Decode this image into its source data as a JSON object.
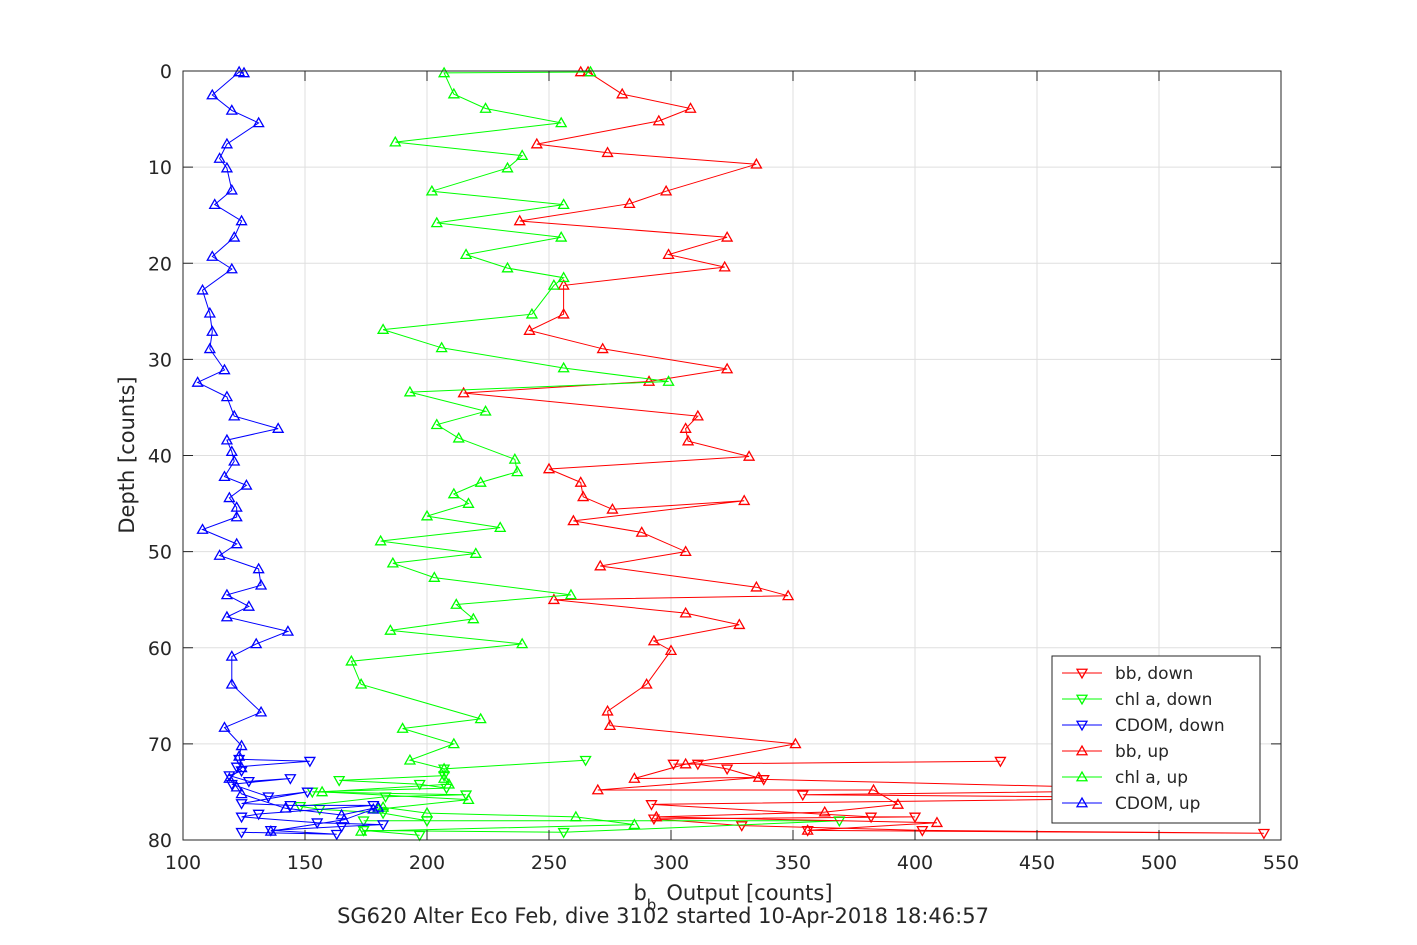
{
  "chart_data": {
    "type": "line",
    "xlabel_main": "b",
    "xlabel_sub": "b",
    "xlabel_rest": "Output [counts]",
    "ylabel": "Depth [counts]",
    "caption": "SG620 Alter Eco Feb, dive 3102 started 10-Apr-2018 18:46:57",
    "xlim": [
      100,
      550
    ],
    "ylim": [
      0,
      80
    ],
    "y_reversed": true,
    "grid": true,
    "xticks": [
      100,
      150,
      200,
      250,
      300,
      350,
      400,
      450,
      500,
      550
    ],
    "yticks": [
      0,
      10,
      20,
      30,
      40,
      50,
      60,
      70,
      80
    ],
    "legend_position": "bottom-right",
    "series": [
      {
        "name": "bb, down",
        "color": "#ff0000",
        "marker": "triangle-down",
        "points": [
          [
            356,
            79
          ],
          [
            543,
            79.3
          ],
          [
            403,
            79
          ],
          [
            329,
            78.5
          ],
          [
            293,
            77.8
          ],
          [
            400,
            77.6
          ],
          [
            382,
            77.6
          ],
          [
            292,
            76.3
          ],
          [
            517,
            75.6
          ],
          [
            354,
            75.3
          ],
          [
            520,
            74.8
          ],
          [
            338,
            73.7
          ],
          [
            323,
            72.6
          ],
          [
            311,
            72.1
          ],
          [
            301,
            72.1
          ],
          [
            435,
            71.8
          ]
        ]
      },
      {
        "name": "chl a, down",
        "color": "#00ff00",
        "marker": "triangle-down",
        "points": [
          [
            197,
            79.5
          ],
          [
            174,
            79
          ],
          [
            256,
            79.2
          ],
          [
            369,
            78
          ],
          [
            174,
            78
          ],
          [
            200,
            78
          ],
          [
            182,
            77.2
          ],
          [
            156,
            76.8
          ],
          [
            148,
            76.5
          ],
          [
            183,
            75.5
          ],
          [
            216,
            75.3
          ],
          [
            153,
            75
          ],
          [
            208,
            74.6
          ],
          [
            197,
            74.2
          ],
          [
            164,
            73.8
          ],
          [
            207,
            73.3
          ],
          [
            207,
            72.6
          ],
          [
            265,
            71.7
          ]
        ]
      },
      {
        "name": "CDOM, down",
        "color": "#0000ff",
        "marker": "triangle-down",
        "points": [
          [
            124,
            79.2
          ],
          [
            163,
            79.4
          ],
          [
            136,
            79
          ],
          [
            165,
            78.6
          ],
          [
            182,
            78.4
          ],
          [
            155,
            78.2
          ],
          [
            124,
            77.6
          ],
          [
            131,
            77.3
          ],
          [
            178,
            76.4
          ],
          [
            144,
            76.4
          ],
          [
            124,
            76.2
          ],
          [
            151,
            75
          ],
          [
            135,
            75.5
          ],
          [
            120,
            74.2
          ],
          [
            144,
            73.6
          ],
          [
            127,
            73.9
          ],
          [
            119,
            73.3
          ],
          [
            124,
            72.8
          ],
          [
            122,
            72.4
          ],
          [
            152,
            71.8
          ],
          [
            123,
            71.6
          ]
        ]
      },
      {
        "name": "bb, up",
        "color": "#ff0000",
        "marker": "triangle-up",
        "points": [
          [
            356,
            79
          ],
          [
            409,
            78.2
          ],
          [
            294,
            77.6
          ],
          [
            363,
            77.1
          ],
          [
            393,
            76.3
          ],
          [
            383,
            74.8
          ],
          [
            270,
            74.8
          ],
          [
            336,
            73.5
          ],
          [
            285,
            73.6
          ],
          [
            306,
            72.1
          ],
          [
            351,
            70
          ],
          [
            275,
            68.1
          ],
          [
            274,
            66.6
          ],
          [
            290,
            63.8
          ],
          [
            300,
            60.3
          ],
          [
            293,
            59.3
          ],
          [
            328,
            57.6
          ],
          [
            306,
            56.4
          ],
          [
            252,
            55
          ],
          [
            348,
            54.6
          ],
          [
            335,
            53.7
          ],
          [
            271,
            51.5
          ],
          [
            306,
            50
          ],
          [
            288,
            48
          ],
          [
            260,
            46.8
          ],
          [
            330,
            44.7
          ],
          [
            276,
            45.6
          ],
          [
            264,
            44.3
          ],
          [
            263,
            42.8
          ],
          [
            250,
            41.4
          ],
          [
            332,
            40.1
          ],
          [
            307,
            38.5
          ],
          [
            306,
            37.2
          ],
          [
            311,
            35.9
          ],
          [
            215,
            33.5
          ],
          [
            291,
            32.3
          ],
          [
            323,
            31
          ],
          [
            272,
            28.9
          ],
          [
            242,
            27
          ],
          [
            256,
            25.3
          ],
          [
            256,
            22.3
          ],
          [
            322,
            20.4
          ],
          [
            299,
            19.1
          ],
          [
            323,
            17.3
          ],
          [
            238,
            15.6
          ],
          [
            283,
            13.8
          ],
          [
            298,
            12.5
          ],
          [
            335,
            9.7
          ],
          [
            274,
            8.5
          ],
          [
            245,
            7.6
          ],
          [
            295,
            5.2
          ],
          [
            308,
            3.9
          ],
          [
            280,
            2.4
          ],
          [
            266,
            0.1
          ],
          [
            263,
            0.1
          ]
        ]
      },
      {
        "name": "chl a, up",
        "color": "#00ff00",
        "marker": "triangle-up",
        "points": [
          [
            173,
            79.1
          ],
          [
            285,
            78.4
          ],
          [
            261,
            77.6
          ],
          [
            200,
            77.2
          ],
          [
            182,
            76.6
          ],
          [
            180,
            76.8
          ],
          [
            217,
            75.8
          ],
          [
            157,
            75
          ],
          [
            209,
            74.2
          ],
          [
            207,
            73.6
          ],
          [
            207,
            72.6
          ],
          [
            193,
            71.7
          ],
          [
            211,
            70
          ],
          [
            190,
            68.4
          ],
          [
            222,
            67.4
          ],
          [
            173,
            63.8
          ],
          [
            169,
            61.4
          ],
          [
            239,
            59.6
          ],
          [
            185,
            58.2
          ],
          [
            219,
            57
          ],
          [
            212,
            55.5
          ],
          [
            259,
            54.5
          ],
          [
            203,
            52.7
          ],
          [
            186,
            51.2
          ],
          [
            220,
            50.2
          ],
          [
            181,
            48.9
          ],
          [
            230,
            47.5
          ],
          [
            200,
            46.3
          ],
          [
            217,
            45
          ],
          [
            211,
            44
          ],
          [
            222,
            42.8
          ],
          [
            237,
            41.7
          ],
          [
            236,
            40.4
          ],
          [
            213,
            38.2
          ],
          [
            204,
            36.8
          ],
          [
            224,
            35.4
          ],
          [
            193,
            33.4
          ],
          [
            299,
            32.3
          ],
          [
            256,
            30.9
          ],
          [
            206,
            28.8
          ],
          [
            182,
            26.9
          ],
          [
            243,
            25.3
          ],
          [
            252,
            22.3
          ],
          [
            256,
            21.5
          ],
          [
            233,
            20.5
          ],
          [
            216,
            19.1
          ],
          [
            255,
            17.3
          ],
          [
            204,
            15.8
          ],
          [
            256,
            13.9
          ],
          [
            202,
            12.5
          ],
          [
            233,
            10.1
          ],
          [
            239,
            8.8
          ],
          [
            187,
            7.4
          ],
          [
            255,
            5.4
          ],
          [
            224,
            3.9
          ],
          [
            211,
            2.4
          ],
          [
            207,
            0.2
          ],
          [
            267,
            0.1
          ]
        ]
      },
      {
        "name": "CDOM, up",
        "color": "#0000ff",
        "marker": "triangle-up",
        "points": [
          [
            136,
            79.1
          ],
          [
            166,
            77.9
          ],
          [
            178,
            76.8
          ],
          [
            180,
            76.6
          ],
          [
            165,
            77.4
          ],
          [
            142,
            76.7
          ],
          [
            124,
            75.2
          ],
          [
            122,
            74.5
          ],
          [
            119,
            73.6
          ],
          [
            124,
            72.5
          ],
          [
            123,
            71.3
          ],
          [
            124,
            70.2
          ],
          [
            117,
            68.3
          ],
          [
            132,
            66.7
          ],
          [
            120,
            63.8
          ],
          [
            120,
            60.9
          ],
          [
            130,
            59.6
          ],
          [
            143,
            58.3
          ],
          [
            118,
            56.8
          ],
          [
            127,
            55.7
          ],
          [
            118,
            54.5
          ],
          [
            132,
            53.5
          ],
          [
            131,
            51.8
          ],
          [
            115,
            50.4
          ],
          [
            122,
            49.2
          ],
          [
            108,
            47.7
          ],
          [
            122,
            46.4
          ],
          [
            122,
            45.4
          ],
          [
            119,
            44.4
          ],
          [
            126,
            43.1
          ],
          [
            117,
            42.2
          ],
          [
            121,
            40.6
          ],
          [
            120,
            39.6
          ],
          [
            118,
            38.4
          ],
          [
            139,
            37.2
          ],
          [
            121,
            35.9
          ],
          [
            118,
            33.9
          ],
          [
            106,
            32.4
          ],
          [
            117,
            31.1
          ],
          [
            111,
            28.9
          ],
          [
            112,
            27.1
          ],
          [
            111,
            25.2
          ],
          [
            108,
            22.8
          ],
          [
            120,
            20.6
          ],
          [
            112,
            19.3
          ],
          [
            121,
            17.3
          ],
          [
            124,
            15.6
          ],
          [
            113,
            13.9
          ],
          [
            120,
            12.4
          ],
          [
            118,
            10.1
          ],
          [
            115,
            9.1
          ],
          [
            118,
            7.6
          ],
          [
            131,
            5.4
          ],
          [
            120,
            4.1
          ],
          [
            112,
            2.5
          ],
          [
            123,
            0.1
          ],
          [
            125,
            0.2
          ]
        ]
      }
    ]
  }
}
